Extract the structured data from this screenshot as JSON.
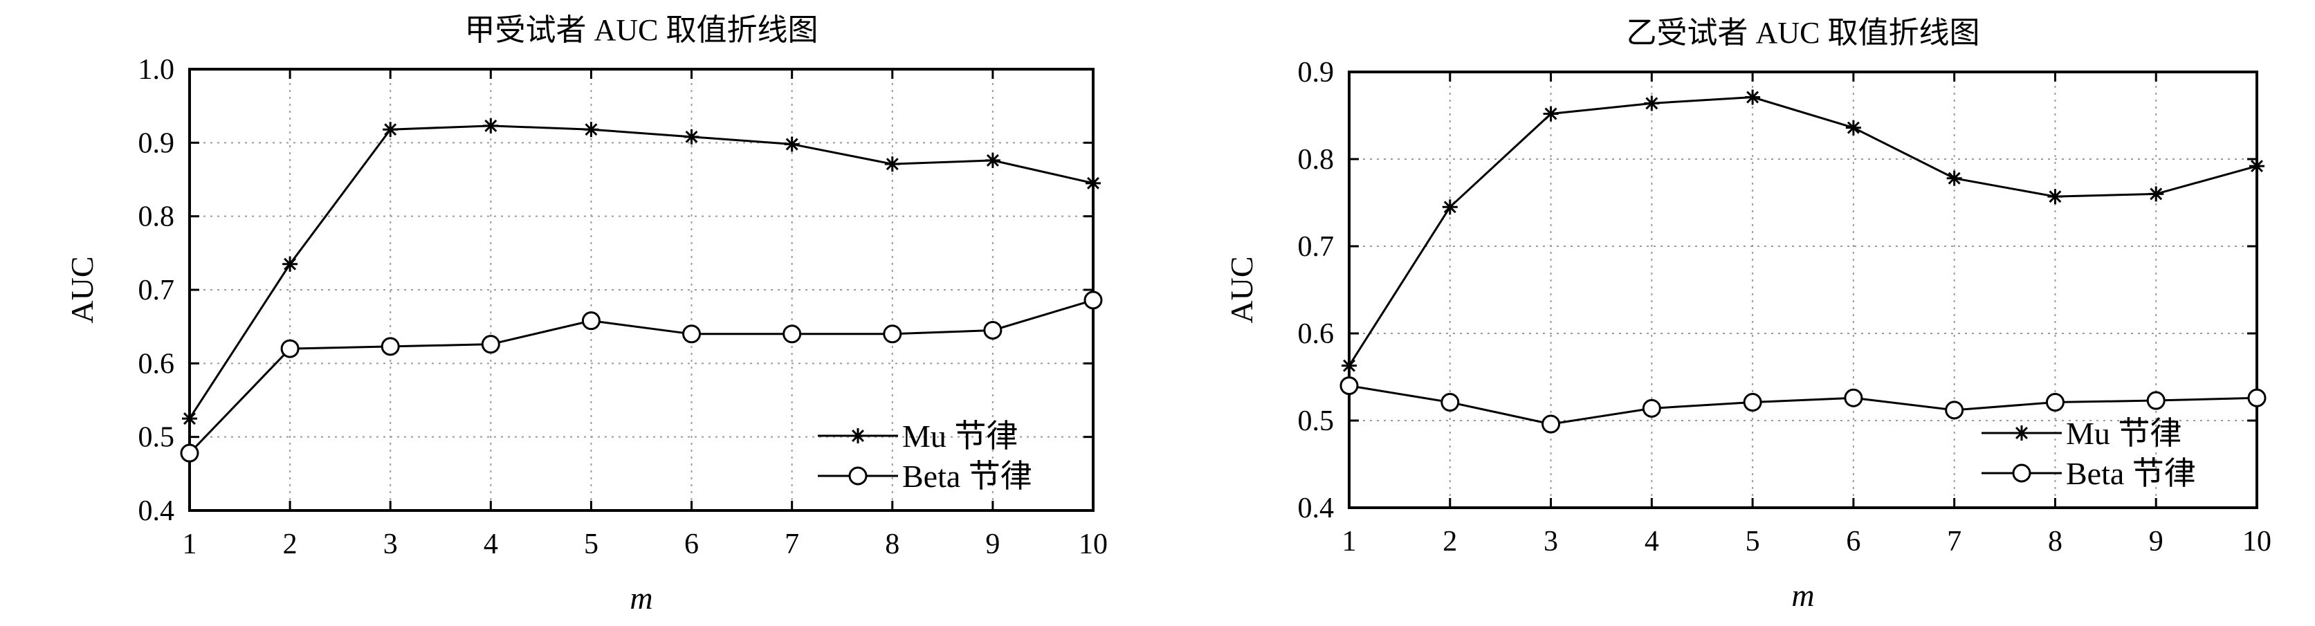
{
  "chart_data": [
    {
      "type": "line",
      "title": "甲受试者 AUC 取值折线图",
      "xlabel": "m",
      "ylabel": "AUC",
      "x": [
        1,
        2,
        3,
        4,
        5,
        6,
        7,
        8,
        9,
        10
      ],
      "xlim": [
        1,
        10
      ],
      "ylim": [
        0.4,
        1.0
      ],
      "xticks": [
        "1",
        "2",
        "3",
        "4",
        "5",
        "6",
        "7",
        "8",
        "9",
        "10"
      ],
      "yticks": [
        "0.4",
        "0.5",
        "0.6",
        "0.7",
        "0.8",
        "0.9",
        "1.0"
      ],
      "grid": true,
      "legend_position": "bottom-right",
      "series": [
        {
          "name": "Mu 节律",
          "marker": "star",
          "values": [
            0.525,
            0.735,
            0.918,
            0.923,
            0.918,
            0.908,
            0.898,
            0.871,
            0.876,
            0.845
          ]
        },
        {
          "name": "Beta 节律",
          "marker": "circle",
          "values": [
            0.478,
            0.62,
            0.623,
            0.626,
            0.658,
            0.64,
            0.64,
            0.64,
            0.645,
            0.686
          ]
        }
      ]
    },
    {
      "type": "line",
      "title": "乙受试者 AUC 取值折线图",
      "xlabel": "m",
      "ylabel": "AUC",
      "x": [
        1,
        2,
        3,
        4,
        5,
        6,
        7,
        8,
        9,
        10
      ],
      "xlim": [
        1,
        10
      ],
      "ylim": [
        0.4,
        0.9
      ],
      "xticks": [
        "1",
        "2",
        "3",
        "4",
        "5",
        "6",
        "7",
        "8",
        "9",
        "10"
      ],
      "yticks": [
        "0.4",
        "0.5",
        "0.6",
        "0.7",
        "0.8",
        "0.9"
      ],
      "grid": true,
      "legend_position": "bottom-right",
      "series": [
        {
          "name": "Mu 节律",
          "marker": "star",
          "values": [
            0.563,
            0.745,
            0.852,
            0.864,
            0.871,
            0.836,
            0.778,
            0.757,
            0.76,
            0.792
          ]
        },
        {
          "name": "Beta 节律",
          "marker": "circle",
          "values": [
            0.54,
            0.521,
            0.496,
            0.514,
            0.521,
            0.526,
            0.512,
            0.521,
            0.523,
            0.526
          ]
        }
      ]
    }
  ]
}
